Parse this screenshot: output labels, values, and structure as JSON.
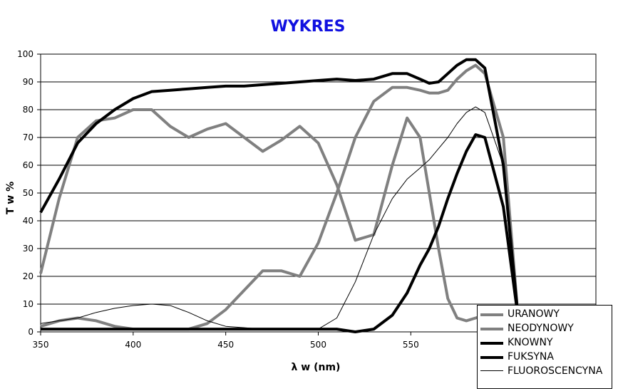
{
  "chart_data": {
    "type": "line",
    "title": "WYKRES",
    "x_label": "λ w (nm)",
    "y_label": "T w %",
    "x": [
      350,
      360,
      370,
      380,
      390,
      400,
      410,
      420,
      430,
      440,
      450,
      460,
      470,
      480,
      490,
      500,
      510,
      520,
      530,
      540,
      548,
      555,
      560,
      565,
      570,
      575,
      580,
      585,
      590,
      600,
      608
    ],
    "series": [
      {
        "name": "URANOWY",
        "color": "#808080",
        "width": 4,
        "values": [
          21,
          48,
          70,
          76,
          77,
          80,
          80,
          74,
          70,
          73,
          75,
          70,
          65,
          69,
          74,
          68,
          53,
          33,
          35,
          60,
          77,
          70,
          50,
          30,
          12,
          5,
          4,
          5,
          6,
          6,
          5
        ]
      },
      {
        "name": "NEODYNOWY",
        "color": "#808080",
        "width": 4,
        "values": [
          2,
          4,
          5,
          4,
          2,
          1,
          1,
          1,
          1,
          3,
          8,
          15,
          22,
          22,
          20,
          32,
          50,
          70,
          83,
          88,
          88,
          87,
          86,
          86,
          87,
          91,
          94,
          96,
          93,
          70,
          5
        ]
      },
      {
        "name": "KNOWNY",
        "color": "#000000",
        "width": 4,
        "values": [
          43,
          55,
          68,
          75,
          80,
          84,
          86.5,
          87,
          87.5,
          88,
          88.5,
          88.5,
          89,
          89.5,
          90,
          90.5,
          91,
          90.5,
          91,
          93,
          93,
          91,
          89.5,
          90,
          93,
          96,
          98,
          98,
          95,
          60,
          5
        ]
      },
      {
        "name": "FUKSYNA",
        "color": "#000000",
        "width": 4,
        "values": [
          1,
          1,
          1,
          1,
          1,
          1,
          1,
          1,
          1,
          1,
          1,
          1,
          1,
          1,
          1,
          1,
          1,
          0,
          1,
          6,
          14,
          24,
          30,
          38,
          48,
          57,
          65,
          71,
          70,
          45,
          5
        ]
      },
      {
        "name": "FLUOROSCENCYNA",
        "color": "#000000",
        "width": 1,
        "values": [
          3,
          4,
          5,
          7,
          8.5,
          9.5,
          10,
          9.5,
          7,
          4,
          2,
          1.5,
          1,
          1,
          1,
          1,
          5,
          18,
          35,
          48,
          55,
          59,
          62,
          66,
          70,
          75,
          79,
          81,
          79,
          60,
          5
        ]
      }
    ],
    "xlim": [
      350,
      650
    ],
    "xticks": [
      350,
      400,
      450,
      500,
      550
    ],
    "ylim": [
      0,
      100
    ],
    "yticks": [
      0,
      10,
      20,
      30,
      40,
      50,
      60,
      70,
      80,
      90,
      100
    ],
    "grid": true
  }
}
